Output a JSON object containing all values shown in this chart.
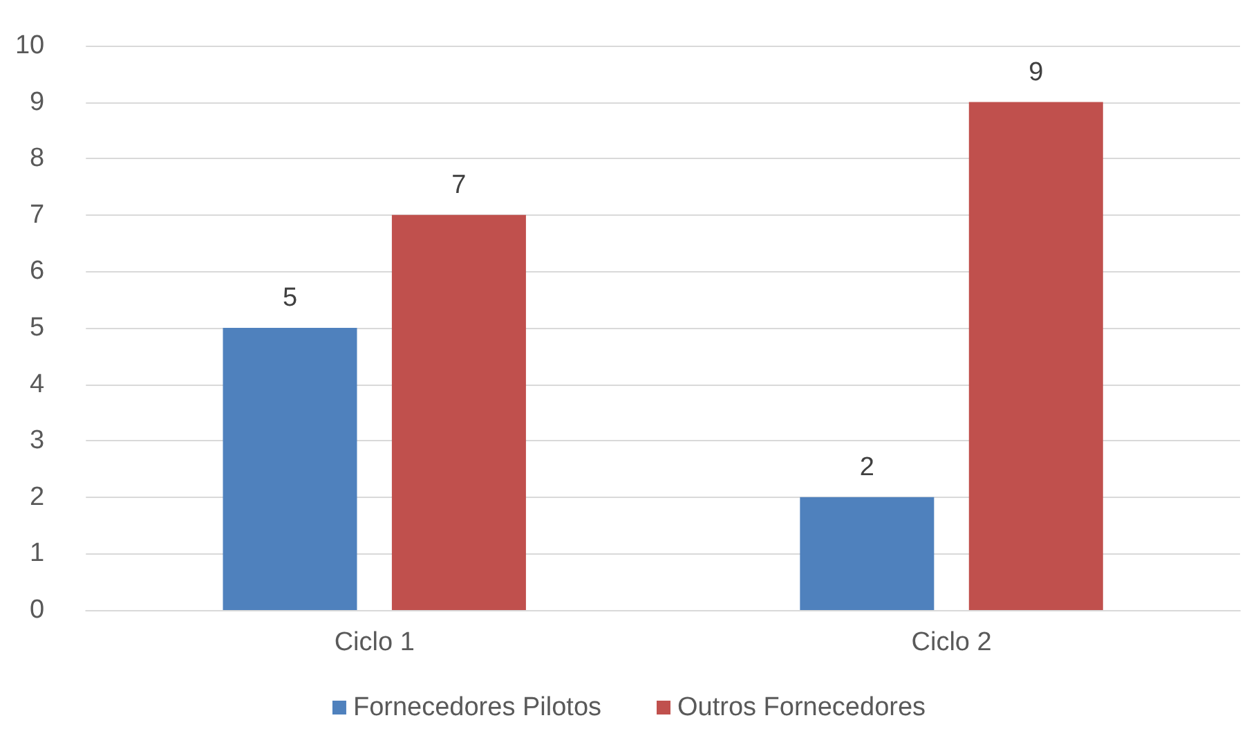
{
  "chart_data": {
    "type": "bar",
    "categories": [
      "Ciclo 1",
      "Ciclo 2"
    ],
    "series": [
      {
        "name": "Fornecedores Pilotos",
        "color": "#4f81bd",
        "values": [
          5,
          2
        ]
      },
      {
        "name": "Outros Fornecedores",
        "color": "#c0504d",
        "values": [
          7,
          9
        ]
      }
    ],
    "ylim": [
      0,
      10
    ],
    "yticks": [
      0,
      1,
      2,
      3,
      4,
      5,
      6,
      7,
      8,
      9,
      10
    ],
    "grid": "y",
    "legend": "bottom",
    "data_labels": true
  }
}
